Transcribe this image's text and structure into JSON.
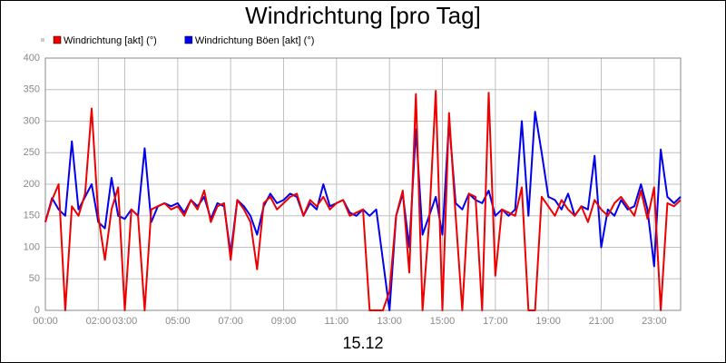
{
  "chart_data": {
    "type": "line",
    "title": "Windrichtung [pro Tag]",
    "xlabel": "15.12",
    "x": [
      0,
      0.25,
      0.5,
      0.75,
      1,
      1.25,
      1.5,
      1.75,
      2,
      2.25,
      2.5,
      2.75,
      3,
      3.25,
      3.5,
      3.75,
      4,
      4.25,
      4.5,
      4.75,
      5,
      5.25,
      5.5,
      5.75,
      6,
      6.25,
      6.5,
      6.75,
      7,
      7.25,
      7.5,
      7.75,
      8,
      8.25,
      8.5,
      8.75,
      9,
      9.25,
      9.5,
      9.75,
      10,
      10.25,
      10.5,
      10.75,
      11,
      11.25,
      11.5,
      11.75,
      12,
      12.25,
      12.5,
      12.75,
      13,
      13.25,
      13.5,
      13.75,
      14,
      14.25,
      14.5,
      14.75,
      15,
      15.25,
      15.5,
      15.75,
      16,
      16.25,
      16.5,
      16.75,
      17,
      17.25,
      17.5,
      17.75,
      18,
      18.25,
      18.5,
      18.75,
      19,
      19.25,
      19.5,
      19.75,
      20,
      20.25,
      20.5,
      20.75,
      21,
      21.25,
      21.5,
      21.75,
      22,
      22.25,
      22.5,
      22.75,
      23,
      23.25,
      23.5,
      23.75,
      24
    ],
    "series": [
      {
        "name": "Windrichtung Böen [akt] (°)",
        "color": "#0000ee",
        "values": [
          140,
          178,
          160,
          150,
          268,
          160,
          180,
          200,
          140,
          130,
          210,
          150,
          145,
          160,
          150,
          257,
          140,
          165,
          170,
          165,
          170,
          155,
          175,
          165,
          180,
          145,
          170,
          165,
          90,
          175,
          165,
          150,
          120,
          165,
          185,
          170,
          175,
          185,
          180,
          150,
          170,
          160,
          200,
          165,
          170,
          175,
          155,
          150,
          160,
          150,
          160,
          80,
          0,
          150,
          185,
          100,
          287,
          120,
          150,
          180,
          120,
          300,
          170,
          160,
          185,
          175,
          170,
          190,
          150,
          160,
          150,
          160,
          300,
          150,
          315,
          250,
          180,
          175,
          160,
          185,
          150,
          165,
          160,
          245,
          100,
          160,
          150,
          175,
          160,
          165,
          200,
          160,
          70,
          255,
          180,
          170,
          180
        ]
      },
      {
        "name": "Windrichtung [akt] (°)",
        "color": "#ee0000",
        "values": [
          140,
          175,
          200,
          0,
          165,
          150,
          185,
          320,
          150,
          80,
          160,
          195,
          0,
          160,
          150,
          0,
          160,
          165,
          170,
          160,
          165,
          150,
          175,
          160,
          190,
          140,
          165,
          170,
          80,
          175,
          160,
          140,
          65,
          170,
          180,
          160,
          170,
          180,
          185,
          150,
          175,
          165,
          180,
          160,
          170,
          175,
          150,
          155,
          160,
          0,
          0,
          0,
          30,
          150,
          190,
          60,
          343,
          0,
          140,
          348,
          0,
          313,
          150,
          0,
          185,
          180,
          0,
          345,
          55,
          160,
          155,
          150,
          195,
          0,
          0,
          180,
          165,
          150,
          175,
          160,
          150,
          165,
          140,
          175,
          160,
          150,
          170,
          180,
          165,
          150,
          190,
          145,
          195,
          0,
          170,
          165,
          175
        ]
      }
    ],
    "legend_order": [
      1,
      0
    ],
    "xlim": [
      0,
      24
    ],
    "xticks": [
      {
        "value": 0,
        "label": "00:00"
      },
      {
        "value": 2,
        "label": "02:00"
      },
      {
        "value": 3,
        "label": "03:00"
      },
      {
        "value": 5,
        "label": "05:00"
      },
      {
        "value": 7,
        "label": "07:00"
      },
      {
        "value": 9,
        "label": "09:00"
      },
      {
        "value": 11,
        "label": "11:00"
      },
      {
        "value": 13,
        "label": "13:00"
      },
      {
        "value": 15,
        "label": "15:00"
      },
      {
        "value": 17,
        "label": "17:00"
      },
      {
        "value": 19,
        "label": "19:00"
      },
      {
        "value": 21,
        "label": "21:00"
      },
      {
        "value": 23,
        "label": "23:00"
      }
    ],
    "ylim": [
      0,
      400
    ],
    "yticks": [
      0,
      50,
      100,
      150,
      200,
      250,
      300,
      350,
      400
    ],
    "grid": true
  }
}
